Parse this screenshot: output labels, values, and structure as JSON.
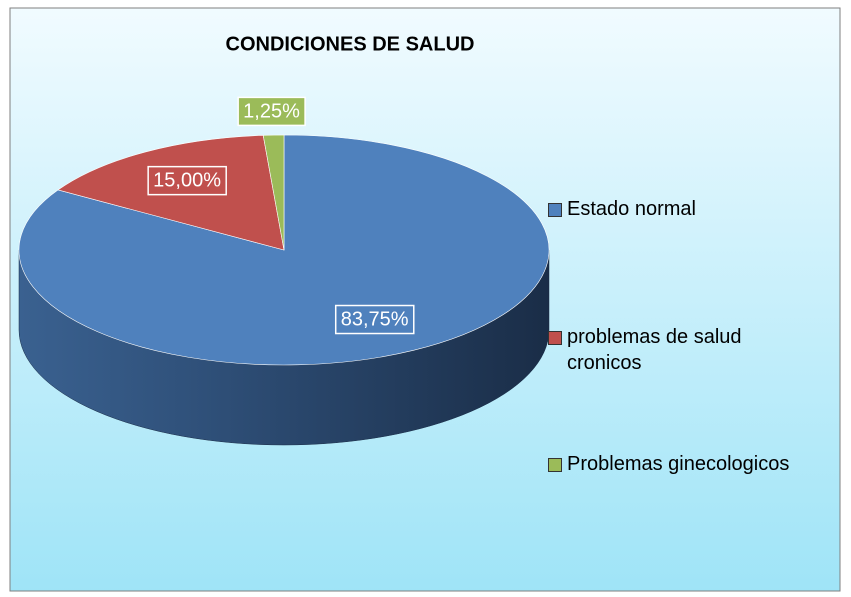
{
  "chart_data": {
    "type": "pie",
    "title": "CONDICIONES DE SALUD",
    "categories": [
      "Estado normal",
      "problemas de salud cronicos",
      "Problemas ginecologicos"
    ],
    "values": [
      83.75,
      15,
      1.25
    ],
    "value_labels": [
      "83,75%",
      "15,00%",
      "1,25%"
    ],
    "colors": [
      "#4f81bd",
      "#c0504d",
      "#9bbb59"
    ],
    "legend": "right"
  }
}
